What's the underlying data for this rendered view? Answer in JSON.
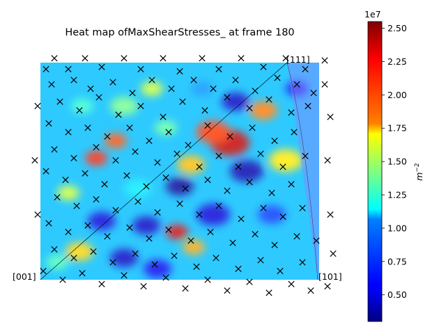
{
  "chart_data": {
    "type": "heatmap",
    "title": "Heat map ofMaxShearStresses_ at frame 180",
    "corner_labels": {
      "top_right": "[111]",
      "bottom_left": "[001]",
      "bottom_right": "[101]"
    },
    "colorbar": {
      "label": "m$^{-2}$",
      "label_text": "m",
      "label_exp": "−2",
      "multiplier": "1e7",
      "min": 0.3,
      "max": 2.55,
      "ticks": [
        "0.50",
        "0.75",
        "1.00",
        "1.25",
        "1.50",
        "1.75",
        "2.00",
        "2.25",
        "2.50"
      ],
      "tick_values": [
        0.5,
        0.75,
        1.0,
        1.25,
        1.5,
        1.75,
        2.0,
        2.25,
        2.5
      ],
      "colormap": "jet"
    },
    "base_value": 1.0,
    "hotspots": [
      {
        "x": 0.68,
        "y": 0.63,
        "r": 0.07,
        "v": 2.4
      },
      {
        "x": 0.62,
        "y": 0.68,
        "r": 0.06,
        "v": 2.15
      },
      {
        "x": 0.74,
        "y": 0.5,
        "r": 0.06,
        "v": 0.4
      },
      {
        "x": 0.5,
        "y": 0.43,
        "r": 0.05,
        "v": 0.35
      },
      {
        "x": 0.7,
        "y": 0.82,
        "r": 0.05,
        "v": 0.45
      },
      {
        "x": 0.88,
        "y": 0.55,
        "r": 0.06,
        "v": 1.75
      },
      {
        "x": 0.8,
        "y": 0.78,
        "r": 0.05,
        "v": 2.0
      },
      {
        "x": 0.54,
        "y": 0.53,
        "r": 0.05,
        "v": 1.85
      },
      {
        "x": 0.49,
        "y": 0.22,
        "r": 0.04,
        "v": 2.35
      },
      {
        "x": 0.2,
        "y": 0.56,
        "r": 0.04,
        "v": 2.2
      },
      {
        "x": 0.27,
        "y": 0.64,
        "r": 0.04,
        "v": 2.1
      },
      {
        "x": 0.14,
        "y": 0.13,
        "r": 0.05,
        "v": 1.8
      },
      {
        "x": 0.3,
        "y": 0.1,
        "r": 0.05,
        "v": 0.45
      },
      {
        "x": 0.22,
        "y": 0.27,
        "r": 0.05,
        "v": 0.5
      },
      {
        "x": 0.38,
        "y": 0.25,
        "r": 0.05,
        "v": 0.45
      },
      {
        "x": 0.62,
        "y": 0.3,
        "r": 0.06,
        "v": 0.5
      },
      {
        "x": 0.42,
        "y": 0.05,
        "r": 0.05,
        "v": 0.55
      },
      {
        "x": 0.1,
        "y": 0.4,
        "r": 0.04,
        "v": 1.6
      },
      {
        "x": 0.35,
        "y": 0.42,
        "r": 0.05,
        "v": 1.1
      },
      {
        "x": 0.83,
        "y": 0.3,
        "r": 0.05,
        "v": 0.7
      },
      {
        "x": 0.45,
        "y": 0.7,
        "r": 0.04,
        "v": 1.35
      },
      {
        "x": 0.55,
        "y": 0.15,
        "r": 0.04,
        "v": 1.9
      },
      {
        "x": 0.06,
        "y": 0.08,
        "r": 0.04,
        "v": 1.3
      },
      {
        "x": 0.3,
        "y": 0.8,
        "r": 0.05,
        "v": 1.4
      },
      {
        "x": 0.15,
        "y": 0.8,
        "r": 0.04,
        "v": 1.25
      },
      {
        "x": 0.4,
        "y": 0.88,
        "r": 0.04,
        "v": 1.6
      },
      {
        "x": 0.58,
        "y": 0.88,
        "r": 0.04,
        "v": 0.9
      },
      {
        "x": 0.92,
        "y": 0.88,
        "r": 0.04,
        "v": 0.55
      }
    ],
    "grain_markers": [
      [
        0.02,
        0.97
      ],
      [
        0.05,
        1.02
      ],
      [
        0.1,
        0.97
      ],
      [
        0.16,
        1.02
      ],
      [
        0.22,
        0.98
      ],
      [
        0.3,
        1.02
      ],
      [
        0.36,
        0.97
      ],
      [
        0.44,
        1.02
      ],
      [
        0.5,
        0.96
      ],
      [
        0.58,
        1.02
      ],
      [
        0.64,
        0.97
      ],
      [
        0.72,
        1.02
      ],
      [
        0.8,
        0.98
      ],
      [
        0.88,
        1.02
      ],
      [
        0.95,
        0.97
      ],
      [
        1.02,
        1.01
      ],
      [
        0.04,
        0.9
      ],
      [
        0.12,
        0.92
      ],
      [
        0.18,
        0.88
      ],
      [
        0.26,
        0.91
      ],
      [
        0.33,
        0.86
      ],
      [
        0.4,
        0.92
      ],
      [
        0.47,
        0.88
      ],
      [
        0.55,
        0.92
      ],
      [
        0.62,
        0.88
      ],
      [
        0.7,
        0.92
      ],
      [
        0.77,
        0.87
      ],
      [
        0.85,
        0.93
      ],
      [
        0.92,
        0.9
      ],
      [
        0.98,
        0.86
      ],
      [
        0.07,
        0.82
      ],
      [
        0.14,
        0.78
      ],
      [
        0.21,
        0.84
      ],
      [
        0.28,
        0.76
      ],
      [
        0.36,
        0.8
      ],
      [
        0.44,
        0.75
      ],
      [
        0.51,
        0.82
      ],
      [
        0.59,
        0.78
      ],
      [
        0.67,
        0.84
      ],
      [
        0.75,
        0.79
      ],
      [
        0.82,
        0.83
      ],
      [
        0.9,
        0.77
      ],
      [
        0.96,
        0.8
      ],
      [
        0.03,
        0.72
      ],
      [
        0.1,
        0.68
      ],
      [
        0.17,
        0.7
      ],
      [
        0.24,
        0.66
      ],
      [
        0.32,
        0.7
      ],
      [
        0.39,
        0.64
      ],
      [
        0.46,
        0.68
      ],
      [
        0.53,
        0.62
      ],
      [
        0.6,
        0.71
      ],
      [
        0.68,
        0.66
      ],
      [
        0.76,
        0.7
      ],
      [
        0.84,
        0.64
      ],
      [
        0.91,
        0.68
      ],
      [
        0.05,
        0.6
      ],
      [
        0.12,
        0.56
      ],
      [
        0.2,
        0.61
      ],
      [
        0.27,
        0.55
      ],
      [
        0.34,
        0.59
      ],
      [
        0.42,
        0.54
      ],
      [
        0.49,
        0.58
      ],
      [
        0.57,
        0.52
      ],
      [
        0.64,
        0.57
      ],
      [
        0.71,
        0.52
      ],
      [
        0.79,
        0.58
      ],
      [
        0.87,
        0.52
      ],
      [
        0.95,
        0.57
      ],
      [
        0.02,
        0.5
      ],
      [
        0.09,
        0.46
      ],
      [
        0.16,
        0.49
      ],
      [
        0.23,
        0.44
      ],
      [
        0.31,
        0.48
      ],
      [
        0.38,
        0.43
      ],
      [
        0.45,
        0.47
      ],
      [
        0.52,
        0.42
      ],
      [
        0.6,
        0.46
      ],
      [
        0.67,
        0.41
      ],
      [
        0.75,
        0.45
      ],
      [
        0.83,
        0.4
      ],
      [
        0.9,
        0.44
      ],
      [
        0.06,
        0.38
      ],
      [
        0.13,
        0.34
      ],
      [
        0.2,
        0.37
      ],
      [
        0.27,
        0.32
      ],
      [
        0.35,
        0.36
      ],
      [
        0.42,
        0.31
      ],
      [
        0.5,
        0.35
      ],
      [
        0.57,
        0.3
      ],
      [
        0.64,
        0.34
      ],
      [
        0.72,
        0.28
      ],
      [
        0.8,
        0.33
      ],
      [
        0.87,
        0.29
      ],
      [
        0.94,
        0.33
      ],
      [
        0.03,
        0.26
      ],
      [
        0.1,
        0.22
      ],
      [
        0.17,
        0.25
      ],
      [
        0.24,
        0.2
      ],
      [
        0.32,
        0.24
      ],
      [
        0.39,
        0.19
      ],
      [
        0.46,
        0.23
      ],
      [
        0.54,
        0.18
      ],
      [
        0.61,
        0.22
      ],
      [
        0.69,
        0.17
      ],
      [
        0.77,
        0.21
      ],
      [
        0.84,
        0.16
      ],
      [
        0.92,
        0.2
      ],
      [
        0.99,
        0.18
      ],
      [
        0.05,
        0.14
      ],
      [
        0.12,
        0.1
      ],
      [
        0.19,
        0.13
      ],
      [
        0.26,
        0.08
      ],
      [
        0.34,
        0.12
      ],
      [
        0.41,
        0.07
      ],
      [
        0.48,
        0.11
      ],
      [
        0.56,
        0.06
      ],
      [
        0.63,
        0.1
      ],
      [
        0.71,
        0.05
      ],
      [
        0.79,
        0.09
      ],
      [
        0.86,
        0.04
      ],
      [
        0.94,
        0.08
      ],
      [
        0.01,
        0.04
      ],
      [
        0.08,
        0.0
      ],
      [
        0.15,
        0.03
      ],
      [
        0.22,
        -0.02
      ],
      [
        0.3,
        0.02
      ],
      [
        0.37,
        -0.03
      ],
      [
        0.45,
        0.01
      ],
      [
        0.52,
        -0.04
      ],
      [
        0.6,
        0.0
      ],
      [
        0.67,
        -0.05
      ],
      [
        0.75,
        -0.01
      ],
      [
        0.82,
        -0.06
      ],
      [
        0.9,
        -0.02
      ],
      [
        0.97,
        -0.05
      ],
      [
        1.03,
        -0.03
      ],
      [
        -0.01,
        0.3
      ],
      [
        -0.02,
        0.55
      ],
      [
        -0.01,
        0.8
      ],
      [
        1.04,
        0.3
      ],
      [
        1.03,
        0.55
      ],
      [
        1.04,
        0.75
      ],
      [
        1.02,
        0.9
      ],
      [
        1.05,
        0.12
      ]
    ]
  }
}
